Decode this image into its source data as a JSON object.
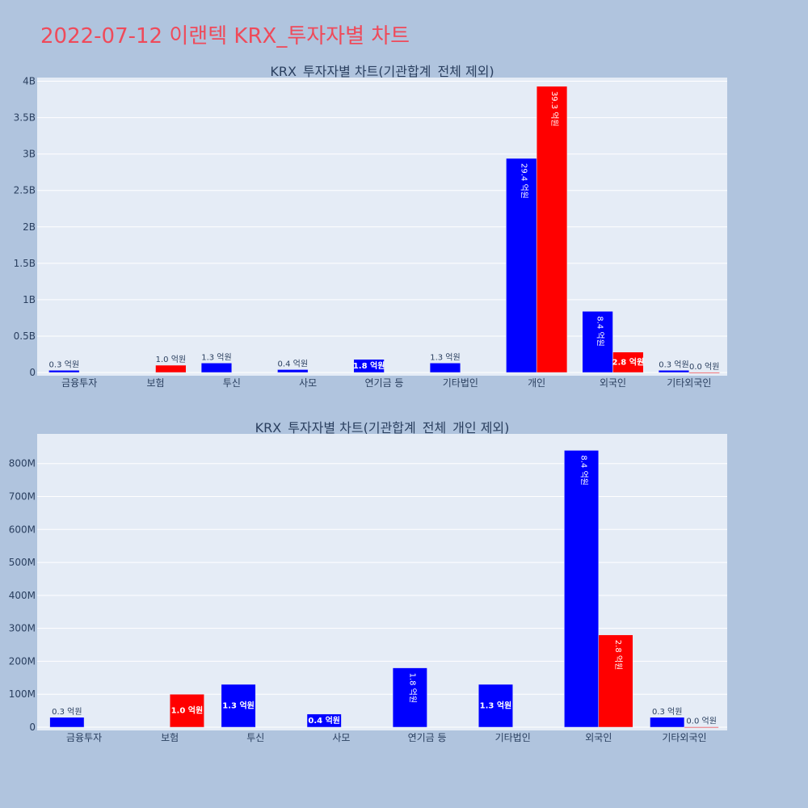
{
  "page_title": "2022-07-12 이랜텍 KRX_투자자별 차트",
  "colors": {
    "background": "#b0c4de",
    "plot_bg": "#e5ecf6",
    "buy": "#0000ff",
    "sell": "#ff0000",
    "title": "#ef4a5a",
    "text": "#2a3f5f"
  },
  "chart_data": [
    {
      "type": "bar",
      "title": "KRX_투자자별 차트(기관합계_전체 제외)",
      "categories": [
        "금융투자",
        "보험",
        "투신",
        "사모",
        "연기금 등",
        "기타법인",
        "개인",
        "외국인",
        "기타외국인"
      ],
      "yticks": [
        "0",
        "0.5B",
        "1B",
        "1.5B",
        "2B",
        "2.5B",
        "3B",
        "3.5B",
        "4B"
      ],
      "ylim": [
        0,
        4050000000
      ],
      "grid": true,
      "series": [
        {
          "color": "#0000ff",
          "values": [
            30000000,
            0,
            130000000,
            40000000,
            180000000,
            130000000,
            2940000000,
            840000000,
            30000000
          ],
          "labels": [
            "0.3 억원",
            "",
            "1.3 억원",
            "0.4 억원",
            "1.8 억원",
            "1.3 억원",
            "29.4 억원",
            "8.4 억원",
            "0.3 억원"
          ]
        },
        {
          "color": "#ff0000",
          "values": [
            0,
            100000000,
            0,
            0,
            0,
            0,
            3930000000,
            280000000,
            1000000
          ],
          "labels": [
            "",
            "1.0 억원",
            "",
            "",
            "",
            "",
            "39.3 억원",
            "2.8 억원",
            "0.0 억원"
          ]
        }
      ]
    },
    {
      "type": "bar",
      "title": "KRX_투자자별 차트(기관합계_전체_개인 제외)",
      "categories": [
        "금융투자",
        "보험",
        "투신",
        "사모",
        "연기금 등",
        "기타법인",
        "외국인",
        "기타외국인"
      ],
      "yticks": [
        "0",
        "100M",
        "200M",
        "300M",
        "400M",
        "500M",
        "600M",
        "700M",
        "800M"
      ],
      "ylim": [
        0,
        890000000
      ],
      "grid": true,
      "series": [
        {
          "color": "#0000ff",
          "values": [
            30000000,
            0,
            130000000,
            40000000,
            180000000,
            130000000,
            840000000,
            30000000
          ],
          "labels": [
            "0.3 억원",
            "",
            "1.3 억원",
            "0.4 억원",
            "1.8 억원",
            "1.3 억원",
            "8.4 억원",
            "0.3 억원"
          ]
        },
        {
          "color": "#ff0000",
          "values": [
            0,
            100000000,
            0,
            0,
            0,
            0,
            280000000,
            1000000
          ],
          "labels": [
            "",
            "1.0 억원",
            "",
            "",
            "",
            "",
            "2.8 억원",
            "0.0 억원"
          ]
        }
      ]
    }
  ]
}
